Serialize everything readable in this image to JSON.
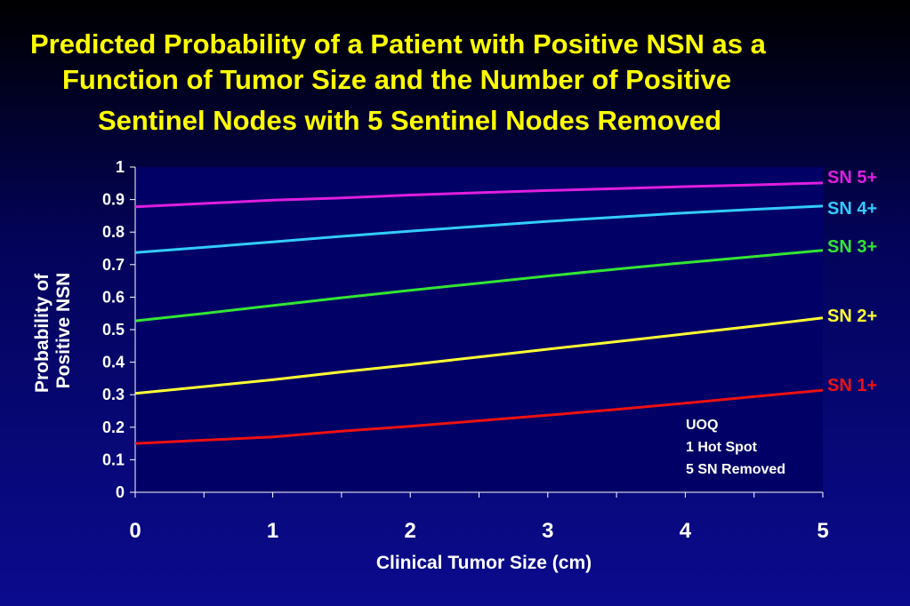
{
  "title_lines": [
    "Predicted Probability of a Patient with Positive NSN as a",
    "Function of Tumor Size and the Number of Positive",
    "Sentinel Nodes with 5 Sentinel Nodes Removed"
  ],
  "chart_data": {
    "type": "line",
    "title": "Predicted Probability of a Patient with Positive NSN as a Function of Tumor Size and the Number of Positive Sentinel Nodes with 5 Sentinel Nodes Removed",
    "xlabel": "Clinical Tumor Size (cm)",
    "ylabel_lines": [
      "Probability of",
      "Positive NSN"
    ],
    "xlim": [
      0,
      5
    ],
    "ylim": [
      0,
      1
    ],
    "x_ticks": [
      "0",
      "1",
      "2",
      "3",
      "4",
      "5"
    ],
    "y_ticks": [
      "0",
      "0.1",
      "0.2",
      "0.3",
      "0.4",
      "0.5",
      "0.6",
      "0.7",
      "0.8",
      "0.9",
      "1"
    ],
    "grid": false,
    "legend": "right, end of each line",
    "x": [
      0,
      0.5,
      1,
      1.5,
      2,
      2.5,
      3,
      3.5,
      4,
      4.5,
      5
    ],
    "series": [
      {
        "name": "SN 5+",
        "color": "#e01ee0",
        "values": [
          0.878,
          0.888,
          0.898,
          0.905,
          0.914,
          0.921,
          0.928,
          0.934,
          0.94,
          0.945,
          0.951
        ]
      },
      {
        "name": "SN 4+",
        "color": "#33ccff",
        "values": [
          0.737,
          0.753,
          0.77,
          0.787,
          0.803,
          0.818,
          0.833,
          0.846,
          0.859,
          0.87,
          0.88
        ]
      },
      {
        "name": "SN 3+",
        "color": "#33e633",
        "values": [
          0.527,
          0.55,
          0.574,
          0.598,
          0.621,
          0.643,
          0.665,
          0.686,
          0.706,
          0.725,
          0.744
        ]
      },
      {
        "name": "SN 2+",
        "color": "#ffff33",
        "values": [
          0.304,
          0.325,
          0.346,
          0.37,
          0.392,
          0.416,
          0.44,
          0.463,
          0.487,
          0.511,
          0.536
        ]
      },
      {
        "name": "SN 1+",
        "color": "#ee1111",
        "values": [
          0.15,
          0.16,
          0.17,
          0.188,
          0.203,
          0.22,
          0.237,
          0.255,
          0.274,
          0.294,
          0.314
        ]
      }
    ],
    "annotation_lines": [
      "UOQ",
      "1 Hot Spot",
      "5 SN Removed"
    ]
  }
}
